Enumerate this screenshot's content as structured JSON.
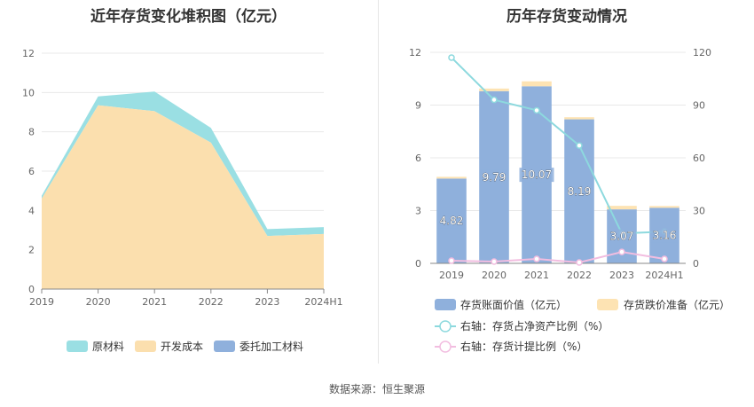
{
  "source": "数据来源：恒生聚源",
  "charts": {
    "left": {
      "title": "近年存货变化堆积图（亿元）",
      "legend": [
        {
          "name": "原材料",
          "color": "#9adfe3"
        },
        {
          "name": "开发成本",
          "color": "#fbdfae"
        },
        {
          "name": "委托加工材料",
          "color": "#8fb0dc"
        }
      ]
    },
    "right": {
      "title": "历年存货变动情况",
      "legend": [
        {
          "name": "存货账面价值（亿元）",
          "color": "#8fb0dc"
        },
        {
          "name": "存货跌价准备（亿元）",
          "color": "#fde3b3"
        },
        {
          "name": "右轴：存货占净资产比例（%）",
          "color": "#8dd9de"
        },
        {
          "name": "右轴：存货计提比例（%）",
          "color": "#f2bde0"
        }
      ]
    }
  },
  "chart_data": [
    {
      "type": "area",
      "stacked": true,
      "title": "近年存货变化堆积图（亿元）",
      "categories": [
        "2019",
        "2020",
        "2021",
        "2022",
        "2023",
        "2024H1"
      ],
      "ylim": [
        0,
        12
      ],
      "yticks": [
        0,
        2,
        4,
        6,
        8,
        10,
        12
      ],
      "grid": true,
      "legend_position": "bottom",
      "series": [
        {
          "name": "开发成本",
          "color": "#fbdfae",
          "values": [
            4.6,
            9.35,
            9.05,
            7.45,
            2.7,
            2.8
          ]
        },
        {
          "name": "原材料",
          "color": "#9adfe3",
          "values": [
            0.15,
            0.45,
            1.0,
            0.75,
            0.35,
            0.35
          ]
        },
        {
          "name": "委托加工材料",
          "color": "#8fb0dc",
          "values": [
            0,
            0,
            0,
            0,
            0,
            0
          ]
        }
      ]
    },
    {
      "type": "bar",
      "stacked": true,
      "title": "历年存货变动情况",
      "categories": [
        "2019",
        "2020",
        "2021",
        "2022",
        "2023",
        "2024H1"
      ],
      "ylim": [
        0,
        12
      ],
      "yticks": [
        0,
        3,
        6,
        9,
        12
      ],
      "y2lim": [
        0,
        120
      ],
      "y2ticks": [
        0,
        30,
        60,
        90,
        120
      ],
      "grid": true,
      "legend_position": "bottom",
      "series": [
        {
          "name": "存货账面价值（亿元）",
          "axis": "left",
          "kind": "bar",
          "color": "#8fb0dc",
          "values": [
            4.82,
            9.79,
            10.07,
            8.19,
            3.07,
            3.16
          ],
          "labels": [
            "4.82",
            "9.79",
            "10.07",
            "8.19",
            "3.07",
            "3.16"
          ]
        },
        {
          "name": "存货跌价准备（亿元）",
          "axis": "left",
          "kind": "bar",
          "color": "#fde3b3",
          "values": [
            0.1,
            0.15,
            0.28,
            0.12,
            0.2,
            0.1
          ]
        },
        {
          "name": "右轴：存货占净资产比例（%）",
          "axis": "right",
          "kind": "line",
          "color": "#8dd9de",
          "values": [
            117,
            93,
            87,
            67,
            17,
            18
          ]
        },
        {
          "name": "右轴：存货计提比例（%）",
          "axis": "right",
          "kind": "line",
          "color": "#f2bde0",
          "values": [
            1.5,
            1,
            2.5,
            0.5,
            6.5,
            2.5
          ]
        }
      ]
    }
  ]
}
